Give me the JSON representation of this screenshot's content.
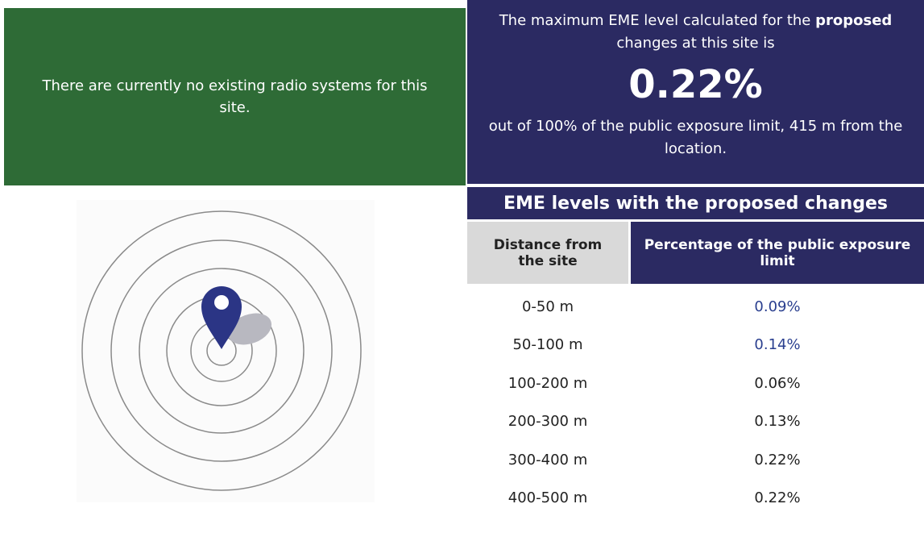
{
  "existing": {
    "text": "There are currently no existing radio systems for this site."
  },
  "proposed": {
    "intro": [
      "The maximum EME level calculated for the ",
      "proposed",
      " changes at this site is"
    ],
    "value": "0.22%",
    "outro": "out of 100% of the public exposure limit, 415 m from the location."
  },
  "table": {
    "title": "EME levels with the proposed changes",
    "headers": [
      "Distance from the site",
      "Percentage of the public exposure limit"
    ],
    "rows": [
      [
        "0-50 m",
        "0.09%"
      ],
      [
        "50-100 m",
        "0.14%"
      ],
      [
        "100-200 m",
        "0.06%"
      ],
      [
        "200-300 m",
        "0.13%"
      ],
      [
        "300-400 m",
        "0.22%"
      ],
      [
        "400-500 m",
        "0.22%"
      ]
    ]
  }
}
